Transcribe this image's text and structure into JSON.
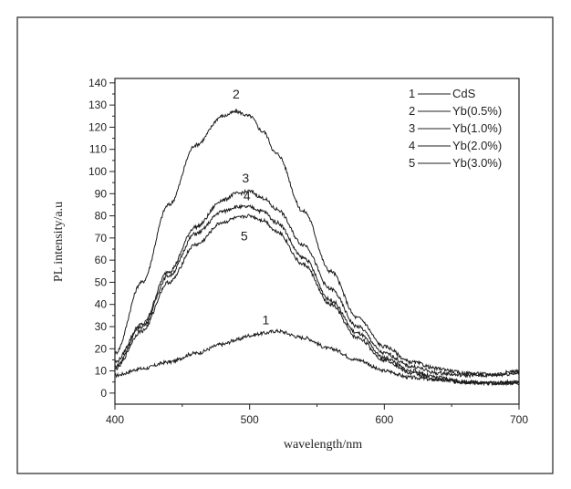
{
  "chart_data": {
    "type": "line",
    "xlabel": "wavelength/nm",
    "ylabel": "PL  intensity/a.u",
    "xlim": [
      400,
      700
    ],
    "ylim": [
      -5,
      142
    ],
    "xticks": [
      400,
      500,
      600,
      700
    ],
    "yticks": [
      0,
      10,
      20,
      30,
      40,
      50,
      60,
      70,
      80,
      90,
      100,
      110,
      120,
      130,
      140
    ],
    "grid": false,
    "legend_position": "top-right",
    "legend": [
      {
        "num": "1",
        "label": "CdS"
      },
      {
        "num": "2",
        "label": "Yb(0.5%)"
      },
      {
        "num": "3",
        "label": "Yb(1.0%)"
      },
      {
        "num": "4",
        "label": "Yb(2.0%)"
      },
      {
        "num": "5",
        "label": "Yb(3.0%)"
      }
    ],
    "x": [
      400,
      420,
      440,
      460,
      480,
      490,
      500,
      510,
      520,
      540,
      560,
      580,
      600,
      620,
      640,
      660,
      680,
      700
    ],
    "series": [
      {
        "label_text": "1",
        "label_at": [
          512,
          31
        ],
        "values": [
          8,
          11,
          14,
          18,
          22,
          24,
          26,
          27,
          28,
          25,
          20,
          15,
          10,
          7,
          6,
          5,
          4.5,
          4.5
        ]
      },
      {
        "label_text": "2",
        "label_at": [
          490,
          133
        ],
        "values": [
          18,
          50,
          85,
          112,
          125,
          127,
          125,
          118,
          108,
          82,
          55,
          34,
          21,
          14,
          11,
          9,
          8.5,
          10
        ]
      },
      {
        "label_text": "3",
        "label_at": [
          497,
          95
        ],
        "values": [
          14,
          31,
          55,
          75,
          87,
          90,
          91,
          88,
          83,
          67,
          47,
          30,
          18,
          12,
          9,
          8,
          8,
          9
        ]
      },
      {
        "label_text": "4",
        "label_at": [
          498,
          87
        ],
        "values": [
          12,
          30,
          53,
          72,
          82,
          84,
          84,
          82,
          77,
          61,
          42,
          27,
          16,
          10,
          7,
          5,
          4.5,
          5
        ]
      },
      {
        "label_text": "5",
        "label_at": [
          496,
          69
        ],
        "values": [
          11,
          28,
          50,
          67,
          77,
          79,
          80,
          78,
          73,
          58,
          40,
          25,
          15,
          9,
          6,
          5,
          4.5,
          5
        ]
      }
    ]
  }
}
